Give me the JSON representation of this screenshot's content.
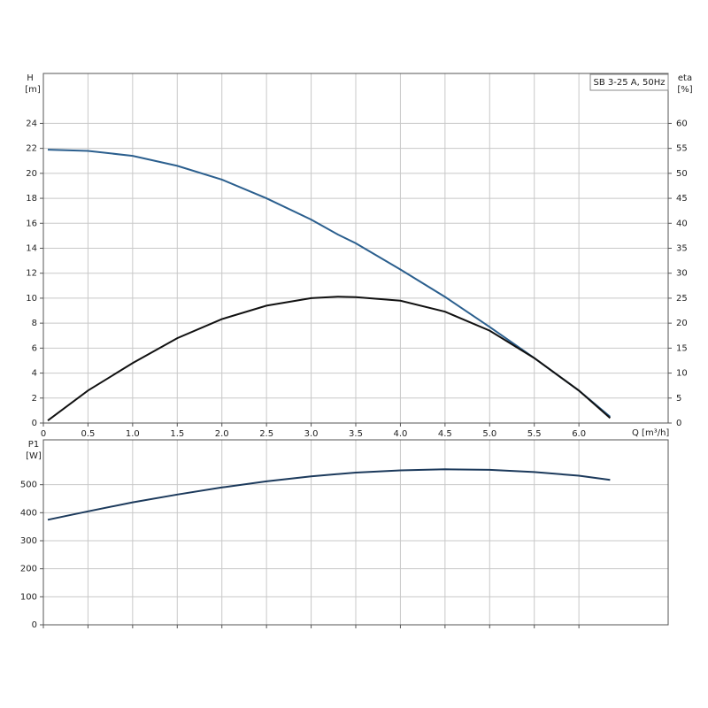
{
  "chart_data": [
    {
      "type": "line",
      "ylabel": "H",
      "yunit": "[m]",
      "y2label": "eta",
      "y2unit": "[%]",
      "xlabel": "Q [m³/h]",
      "annotation": "SB 3-25 A, 50Hz",
      "x": [
        0.05,
        0.5,
        1.0,
        1.5,
        2.0,
        2.5,
        3.0,
        3.3,
        3.5,
        4.0,
        4.5,
        5.0,
        5.5,
        6.0,
        6.35
      ],
      "series": [
        {
          "color": "#2b5f8e",
          "values": [
            21.9,
            21.8,
            21.4,
            20.6,
            19.5,
            18.0,
            16.3,
            15.1,
            14.4,
            12.3,
            10.1,
            7.7,
            5.2,
            2.6,
            0.5
          ]
        },
        {
          "color": "#111111",
          "axis": "y2",
          "values": [
            0.5,
            6.5,
            12,
            17,
            20.8,
            23.5,
            25,
            25.3,
            25.2,
            24.5,
            22.3,
            18.5,
            13,
            6.5,
            1
          ]
        }
      ],
      "xlim": [
        0,
        7
      ],
      "xticks": [
        0,
        0.5,
        {
          "value": 1,
          "label": "1.0"
        },
        1.5,
        {
          "value": 2,
          "label": "2.0"
        },
        2.5,
        {
          "value": 3,
          "label": "3.0"
        },
        3.5,
        {
          "value": 4,
          "label": "4.0"
        },
        4.5,
        {
          "value": 5,
          "label": "5.0"
        },
        5.5,
        {
          "value": 6,
          "label": "6.0"
        }
      ],
      "ylim": [
        0,
        28
      ],
      "yticks": [
        0,
        2,
        4,
        6,
        8,
        10,
        12,
        14,
        16,
        18,
        20,
        22,
        24
      ],
      "y2lim": [
        0,
        70
      ],
      "y2ticks": [
        0,
        5,
        10,
        15,
        20,
        25,
        30,
        35,
        40,
        45,
        50,
        55,
        60
      ],
      "grid": true
    },
    {
      "type": "line",
      "ylabel": "P1",
      "yunit": "[W]",
      "x": [
        0.05,
        0.5,
        1.0,
        1.5,
        2.0,
        2.5,
        3.0,
        3.5,
        4.0,
        4.5,
        5.0,
        5.5,
        6.0,
        6.35
      ],
      "series": [
        {
          "color": "#1c3a5c",
          "values": [
            375,
            405,
            437,
            465,
            490,
            512,
            530,
            543,
            551,
            555,
            553,
            545,
            532,
            517
          ]
        }
      ],
      "xlim": [
        0,
        7
      ],
      "ylim": [
        0,
        660
      ],
      "yticks": [
        0,
        100,
        200,
        300,
        400,
        500
      ],
      "grid": true
    }
  ]
}
